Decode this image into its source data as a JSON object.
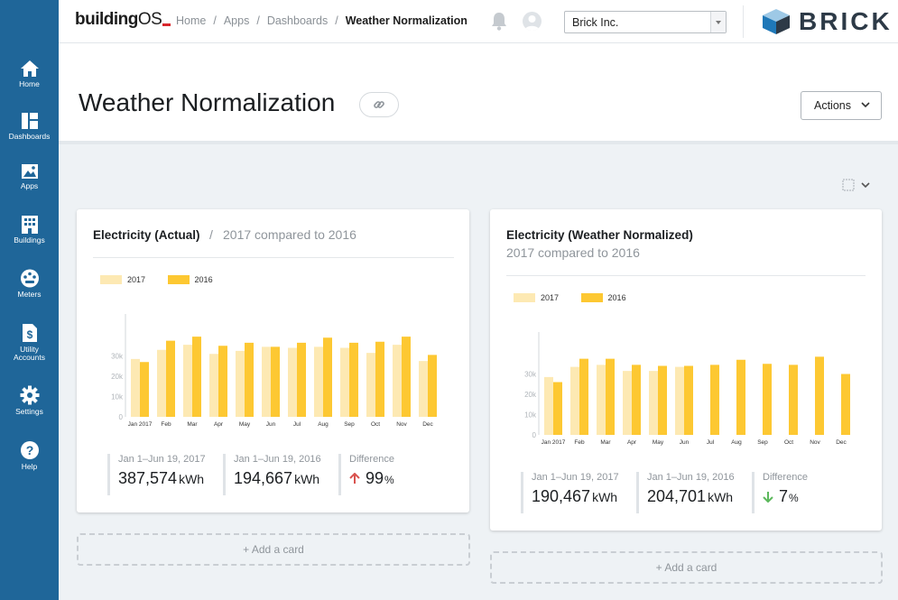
{
  "sidebar": {
    "items": [
      {
        "label": "Home",
        "icon": "home-icon"
      },
      {
        "label": "Dashboards",
        "icon": "dashboards-icon"
      },
      {
        "label": "Apps",
        "icon": "apps-icon"
      },
      {
        "label": "Buildings",
        "icon": "buildings-icon"
      },
      {
        "label": "Meters",
        "icon": "meters-icon"
      },
      {
        "label": "Utility",
        "label2": "Accounts",
        "icon": "utility-accounts-icon"
      },
      {
        "label": "Settings",
        "icon": "gear-icon"
      },
      {
        "label": "Help",
        "icon": "help-icon"
      }
    ]
  },
  "header": {
    "logo_bold": "building",
    "logo_light": "OS",
    "breadcrumb": [
      "Home",
      "Apps",
      "Dashboards"
    ],
    "breadcrumb_current": "Weather Normalization",
    "org_select": "Brick Inc.",
    "brand": "BRICK"
  },
  "page": {
    "title": "Weather Normalization",
    "actions_label": "Actions"
  },
  "colors": {
    "bar_2017": "#fde9b3",
    "bar_2016": "#fdc832",
    "sidebar": "#1f6699",
    "up_arrow": "#d9534f",
    "down_arrow": "#5cb85c"
  },
  "cards": [
    {
      "title": "Electricity (Actual)",
      "subtitle": "2017 compared to 2016",
      "legend": [
        "2017",
        "2016"
      ],
      "stats": [
        {
          "label": "Jan 1–Jun 19, 2017",
          "value": "387,574",
          "unit": "kWh"
        },
        {
          "label": "Jan 1–Jun 19, 2016",
          "value": "194,667",
          "unit": "kWh"
        },
        {
          "label": "Difference",
          "value": "99",
          "unit": "%",
          "direction": "up"
        }
      ]
    },
    {
      "title": "Electricity (Weather Normalized)",
      "subtitle": "2017 compared to 2016",
      "legend": [
        "2017",
        "2016"
      ],
      "stats": [
        {
          "label": "Jan 1–Jun 19, 2017",
          "value": "190,467",
          "unit": "kWh"
        },
        {
          "label": "Jan 1–Jun 19, 2016",
          "value": "204,701",
          "unit": "kWh"
        },
        {
          "label": "Difference",
          "value": "7",
          "unit": "%",
          "direction": "down"
        }
      ]
    }
  ],
  "add_card_label": "+ Add a card",
  "chart_data": [
    {
      "type": "bar",
      "categories": [
        "Jan 2017",
        "Feb",
        "Mar",
        "Apr",
        "May",
        "Jun",
        "Jul",
        "Aug",
        "Sep",
        "Oct",
        "Nov",
        "Dec"
      ],
      "series": [
        {
          "name": "2017",
          "values": [
            28500,
            33000,
            35500,
            31000,
            32500,
            34500,
            34000,
            34500,
            34000,
            31500,
            35500,
            27500
          ]
        },
        {
          "name": "2016",
          "values": [
            27000,
            37500,
            39500,
            35000,
            36500,
            34500,
            36500,
            39000,
            36500,
            37000,
            39500,
            30500
          ]
        }
      ],
      "yticks": [
        "0",
        "10k",
        "20k",
        "30k"
      ],
      "ylim": [
        0,
        40000
      ],
      "legend_position": "top-left",
      "grid": false
    },
    {
      "type": "bar",
      "categories": [
        "Jan 2017",
        "Feb",
        "Mar",
        "Apr",
        "May",
        "Jun",
        "Jul",
        "Aug",
        "Sep",
        "Oct",
        "Nov",
        "Dec"
      ],
      "series": [
        {
          "name": "2017",
          "values": [
            28500,
            33500,
            34500,
            31500,
            31500,
            33500,
            null,
            null,
            null,
            null,
            null,
            null
          ]
        },
        {
          "name": "2016",
          "values": [
            26000,
            37500,
            37500,
            34500,
            34000,
            34000,
            34500,
            37000,
            35000,
            34500,
            38500,
            30000
          ]
        }
      ],
      "yticks": [
        "0",
        "10k",
        "20k",
        "30k"
      ],
      "ylim": [
        0,
        40000
      ],
      "legend_position": "top-left",
      "grid": false
    }
  ]
}
